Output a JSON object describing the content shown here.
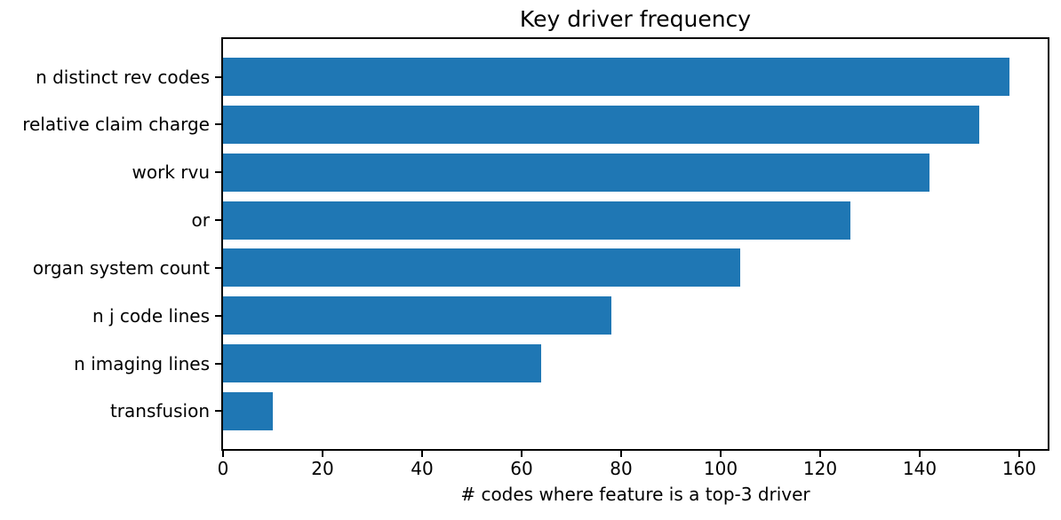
{
  "chart_data": {
    "type": "bar",
    "orientation": "horizontal",
    "title": "Key driver frequency",
    "xlabel": "# codes where feature is a top-3 driver",
    "ylabel": "",
    "categories": [
      "n distinct rev codes",
      "relative claim charge",
      "work rvu",
      "or",
      "organ system count",
      "n j code lines",
      "n imaging lines",
      "transfusion"
    ],
    "values": [
      158,
      152,
      142,
      126,
      104,
      78,
      64,
      10
    ],
    "xticks": [
      0,
      20,
      40,
      60,
      80,
      100,
      120,
      140,
      160
    ],
    "xlim": [
      0,
      165.7
    ],
    "bar_color": "#1f77b4",
    "axis_color": "#000000",
    "background_color": "#ffffff",
    "grid": false,
    "legend": "none"
  }
}
